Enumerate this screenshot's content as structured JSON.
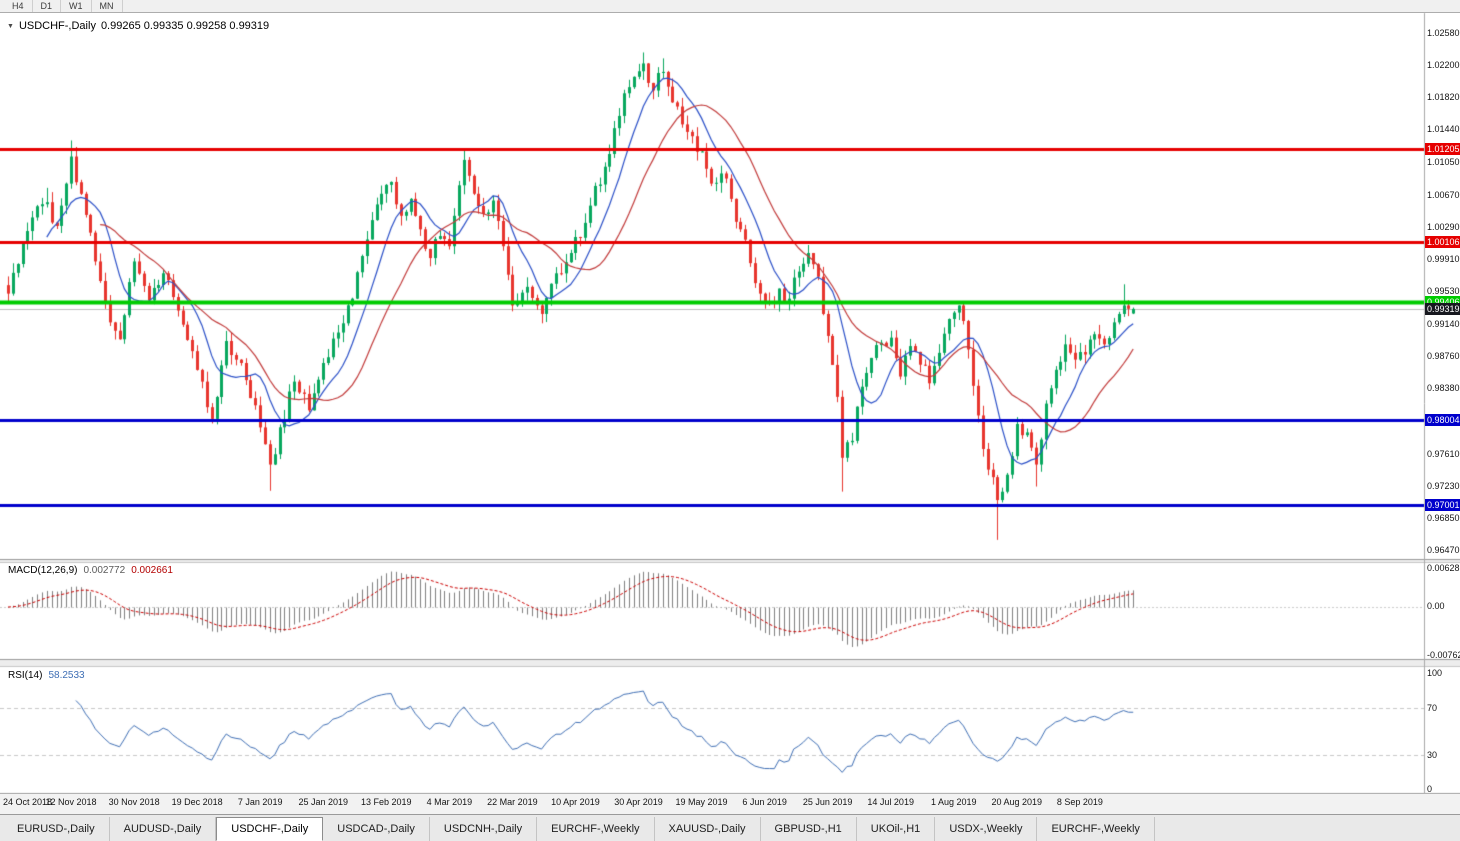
{
  "icons": {
    "dropdown_arrow": "▼"
  },
  "toolbar": {
    "timeframes": [
      {
        "label": "H4"
      },
      {
        "label": "D1"
      },
      {
        "label": "W1"
      },
      {
        "label": "MN"
      }
    ]
  },
  "chart": {
    "title": {
      "symbol": "USDCHF-,Daily",
      "ohlc": "0.99265 0.99335 0.99258 0.99319"
    }
  },
  "chart_data": {
    "type": "candlestick",
    "symbol": "USDCHF-",
    "timeframe": "Daily",
    "current_ohlc": {
      "open": 0.99265,
      "high": 0.99335,
      "low": 0.99258,
      "close": 0.99319
    },
    "price_range": {
      "max": 1.0258,
      "min": 0.9647
    },
    "y_axis_ticks": [
      "1.02580",
      "1.02200",
      "1.01820",
      "1.01440",
      "1.01050",
      "1.00670",
      "1.00290",
      "0.99910",
      "0.99530",
      "0.99140",
      "0.98760",
      "0.98380",
      "0.98000",
      "0.97610",
      "0.97230",
      "0.96850",
      "0.96470"
    ],
    "x_axis_labels": [
      {
        "index": 0,
        "label": "24 Oct 2018"
      },
      {
        "index": 13,
        "label": "12 Nov 2018"
      },
      {
        "index": 26,
        "label": "30 Nov 2018"
      },
      {
        "index": 39,
        "label": "19 Dec 2018"
      },
      {
        "index": 52,
        "label": "7 Jan 2019"
      },
      {
        "index": 65,
        "label": "25 Jan 2019"
      },
      {
        "index": 78,
        "label": "13 Feb 2019"
      },
      {
        "index": 91,
        "label": "4 Mar 2019"
      },
      {
        "index": 104,
        "label": "22 Mar 2019"
      },
      {
        "index": 117,
        "label": "10 Apr 2019"
      },
      {
        "index": 130,
        "label": "30 Apr 2019"
      },
      {
        "index": 143,
        "label": "19 May 2019"
      },
      {
        "index": 156,
        "label": "6 Jun 2019"
      },
      {
        "index": 169,
        "label": "25 Jun 2019"
      },
      {
        "index": 182,
        "label": "14 Jul 2019"
      },
      {
        "index": 195,
        "label": "1 Aug 2019"
      },
      {
        "index": 208,
        "label": "20 Aug 2019"
      },
      {
        "index": 221,
        "label": "8 Sep 2019"
      }
    ],
    "horizontal_levels": [
      {
        "price": 1.01205,
        "label": "1.01205",
        "color": "#e60000",
        "width": 3
      },
      {
        "price": 1.00106,
        "label": "1.00106",
        "color": "#e60000",
        "width": 3
      },
      {
        "price": 0.99406,
        "label": "0.99406",
        "color": "#00cc00",
        "width": 4
      },
      {
        "price": 0.98004,
        "label": "0.98004",
        "color": "#0000cc",
        "width": 3
      },
      {
        "price": 0.97001,
        "label": "0.97001",
        "color": "#0000cc",
        "width": 3
      }
    ],
    "current_price_marker": {
      "price": 0.99319,
      "label": "0.99319",
      "color": "#17181f"
    },
    "candle_count": 233,
    "price_path": [
      [
        0,
        0.995
      ],
      [
        2,
        0.9985
      ],
      [
        5,
        1.004
      ],
      [
        8,
        1.0058
      ],
      [
        10,
        1.003
      ],
      [
        12,
        1.008
      ],
      [
        13,
        1.0112
      ],
      [
        15,
        1.0068
      ],
      [
        18,
        0.9988
      ],
      [
        21,
        0.9916
      ],
      [
        23,
        0.9896
      ],
      [
        26,
        0.9988
      ],
      [
        29,
        0.9942
      ],
      [
        32,
        0.9974
      ],
      [
        35,
        0.993
      ],
      [
        38,
        0.9882
      ],
      [
        40,
        0.9846
      ],
      [
        42,
        0.9802
      ],
      [
        45,
        0.9894
      ],
      [
        48,
        0.9868
      ],
      [
        51,
        0.9818
      ],
      [
        53,
        0.9772
      ],
      [
        54,
        0.9748
      ],
      [
        56,
        0.9792
      ],
      [
        59,
        0.9846
      ],
      [
        62,
        0.9812
      ],
      [
        65,
        0.9868
      ],
      [
        68,
        0.9904
      ],
      [
        71,
        0.9944
      ],
      [
        74,
        1.0014
      ],
      [
        77,
        1.0068
      ],
      [
        79,
        1.0082
      ],
      [
        81,
        1.0042
      ],
      [
        83,
        1.0062
      ],
      [
        85,
        1.0026
      ],
      [
        87,
        0.9992
      ],
      [
        89,
        1.0018
      ],
      [
        91,
        1.0006
      ],
      [
        93,
        1.0078
      ],
      [
        94,
        1.0108
      ],
      [
        96,
        1.0068
      ],
      [
        98,
        1.0044
      ],
      [
        100,
        1.006
      ],
      [
        102,
        1.0006
      ],
      [
        104,
        0.9936
      ],
      [
        107,
        0.9958
      ],
      [
        110,
        0.9926
      ],
      [
        113,
        0.9974
      ],
      [
        116,
        0.9998
      ],
      [
        118,
        1.0016
      ],
      [
        120,
        1.0054
      ],
      [
        123,
        1.01
      ],
      [
        126,
        1.016
      ],
      [
        128,
        1.0194
      ],
      [
        131,
        1.0222
      ],
      [
        133,
        1.019
      ],
      [
        135,
        1.0212
      ],
      [
        137,
        1.0176
      ],
      [
        139,
        1.015
      ],
      [
        141,
        1.0136
      ],
      [
        143,
        1.0118
      ],
      [
        145,
        1.008
      ],
      [
        147,
        1.0092
      ],
      [
        149,
        1.0062
      ],
      [
        151,
        1.0026
      ],
      [
        153,
        0.9986
      ],
      [
        155,
        0.995
      ],
      [
        157,
        0.994
      ],
      [
        159,
        0.9956
      ],
      [
        161,
        0.9944
      ],
      [
        163,
        0.9976
      ],
      [
        165,
        0.9998
      ],
      [
        167,
        0.997
      ],
      [
        169,
        0.99
      ],
      [
        171,
        0.9828
      ],
      [
        172,
        0.9756
      ],
      [
        174,
        0.9776
      ],
      [
        176,
        0.984
      ],
      [
        178,
        0.9874
      ],
      [
        180,
        0.9892
      ],
      [
        182,
        0.9898
      ],
      [
        184,
        0.9852
      ],
      [
        186,
        0.9888
      ],
      [
        188,
        0.9866
      ],
      [
        190,
        0.9844
      ],
      [
        192,
        0.988
      ],
      [
        194,
        0.992
      ],
      [
        196,
        0.9936
      ],
      [
        198,
        0.9884
      ],
      [
        200,
        0.9806
      ],
      [
        202,
        0.9742
      ],
      [
        204,
        0.9706
      ],
      [
        206,
        0.9736
      ],
      [
        208,
        0.9796
      ],
      [
        210,
        0.9786
      ],
      [
        212,
        0.9748
      ],
      [
        214,
        0.982
      ],
      [
        216,
        0.986
      ],
      [
        218,
        0.989
      ],
      [
        220,
        0.9872
      ],
      [
        222,
        0.9878
      ],
      [
        224,
        0.9902
      ],
      [
        226,
        0.989
      ],
      [
        228,
        0.9916
      ],
      [
        230,
        0.9936
      ],
      [
        232,
        0.99319
      ]
    ],
    "special_wicks": [
      [
        8,
        "high",
        1.0075
      ],
      [
        13,
        "high",
        1.0131
      ],
      [
        54,
        "low",
        0.9717
      ],
      [
        94,
        "high",
        1.0122
      ],
      [
        131,
        "high",
        1.0235
      ],
      [
        135,
        "high",
        1.0228
      ],
      [
        172,
        "low",
        0.9716
      ],
      [
        204,
        "low",
        0.9659
      ],
      [
        212,
        "low",
        0.9722
      ],
      [
        230,
        "high",
        0.9961
      ]
    ],
    "moving_averages": [
      {
        "period": 9,
        "color": "#2b50c8"
      },
      {
        "period": 20,
        "color": "#c23b3b"
      }
    ],
    "indicators": {
      "macd": {
        "name": "MACD(12,26,9)",
        "value_main": "0.002772",
        "value_signal": "0.002661",
        "axis_labels": [
          "0.006286",
          "0.00",
          "-0.00762"
        ],
        "fast": 12,
        "slow": 26,
        "signal": 9,
        "histogram_color": "#7f7f7f",
        "signal_color": "#cc0000"
      },
      "rsi": {
        "name": "RSI(14)",
        "value": "58.2533",
        "period": 14,
        "axis_labels": [
          "100",
          "70",
          "30",
          "0"
        ],
        "levels": [
          70,
          30
        ],
        "line_color": "#3f6fb5"
      }
    },
    "colors": {
      "up": "#08a85e",
      "down": "#e8352e",
      "current_price_line": "#c0c0c0"
    }
  },
  "tabs": {
    "items": [
      {
        "label": "EURUSD-,Daily"
      },
      {
        "label": "AUDUSD-,Daily"
      },
      {
        "label": "USDCHF-,Daily",
        "active": true
      },
      {
        "label": "USDCAD-,Daily"
      },
      {
        "label": "USDCNH-,Daily"
      },
      {
        "label": "EURCHF-,Weekly"
      },
      {
        "label": "XAUUSD-,Daily"
      },
      {
        "label": "GBPUSD-,H1"
      },
      {
        "label": "UKOil-,H1"
      },
      {
        "label": "USDX-,Weekly"
      },
      {
        "label": "EURCHF-,Weekly"
      }
    ]
  }
}
